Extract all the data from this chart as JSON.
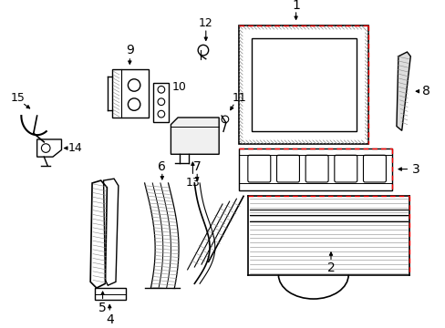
{
  "background_color": "#ffffff",
  "line_color": "#000000",
  "red_dashed_color": "#ff0000",
  "label_fontsize": 9,
  "figsize": [
    4.89,
    3.6
  ],
  "dpi": 100
}
